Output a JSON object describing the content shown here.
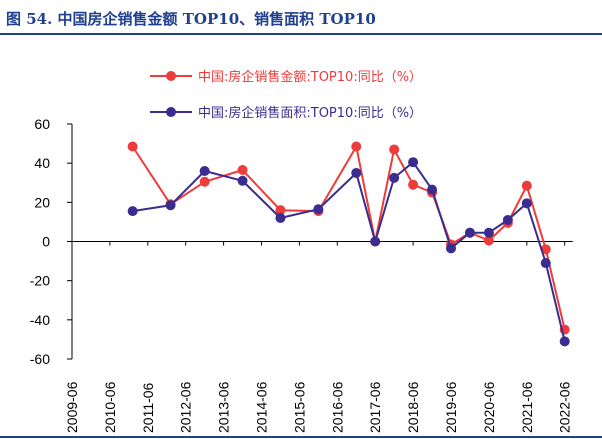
{
  "figure": {
    "title": "图 54. 中国房企销售金额 TOP10、销售面积 TOP10"
  },
  "chart_data": {
    "type": "line",
    "x": [
      "2009-06",
      "2010-06",
      "2011-06",
      "2012-06",
      "2013-06",
      "2014-06",
      "2015-06",
      "2016-06",
      "2017-06",
      "2018-06",
      "2019-06",
      "2020-06",
      "2021-06",
      "2022-06"
    ],
    "ylim": [
      -60,
      60
    ],
    "yticks": [
      "60",
      "40",
      "20",
      "0",
      "-20",
      "-40",
      "-60"
    ],
    "grid": false,
    "legend_position": "top",
    "series": [
      {
        "name": "中国:房企销售金额:TOP10:同比（%）",
        "color": "#ee3b3b",
        "points": [
          {
            "x": 1.6,
            "y": 48.5
          },
          {
            "x": 2.6,
            "y": 19
          },
          {
            "x": 3.5,
            "y": 30.5
          },
          {
            "x": 4.5,
            "y": 36.5
          },
          {
            "x": 5.5,
            "y": 16
          },
          {
            "x": 6.5,
            "y": 15.5
          },
          {
            "x": 7.5,
            "y": 48.5
          },
          {
            "x": 8.0,
            "y": 0
          },
          {
            "x": 8.5,
            "y": 47
          },
          {
            "x": 9.0,
            "y": 29
          },
          {
            "x": 9.5,
            "y": 25
          },
          {
            "x": 10.0,
            "y": -1.5
          },
          {
            "x": 10.5,
            "y": 4.5
          },
          {
            "x": 11.0,
            "y": 0.5
          },
          {
            "x": 11.5,
            "y": 9.5
          },
          {
            "x": 12.0,
            "y": 28.5
          },
          {
            "x": 12.5,
            "y": -4
          },
          {
            "x": 13.0,
            "y": -45
          }
        ]
      },
      {
        "name": "中国:房企销售面积:TOP10:同比（%）",
        "color": "#3a2d8f",
        "points": [
          {
            "x": 1.6,
            "y": 15.5
          },
          {
            "x": 2.6,
            "y": 18.5
          },
          {
            "x": 3.5,
            "y": 36
          },
          {
            "x": 4.5,
            "y": 31
          },
          {
            "x": 5.5,
            "y": 12
          },
          {
            "x": 6.5,
            "y": 16.5
          },
          {
            "x": 7.5,
            "y": 35
          },
          {
            "x": 8.0,
            "y": 0
          },
          {
            "x": 8.5,
            "y": 32.5
          },
          {
            "x": 9.0,
            "y": 40.5
          },
          {
            "x": 9.5,
            "y": 26.5
          },
          {
            "x": 10.0,
            "y": -3.5
          },
          {
            "x": 10.5,
            "y": 4.5
          },
          {
            "x": 11.0,
            "y": 4.5
          },
          {
            "x": 11.5,
            "y": 11
          },
          {
            "x": 12.0,
            "y": 19.5
          },
          {
            "x": 12.5,
            "y": -11
          },
          {
            "x": 13.0,
            "y": -51
          }
        ]
      }
    ]
  }
}
